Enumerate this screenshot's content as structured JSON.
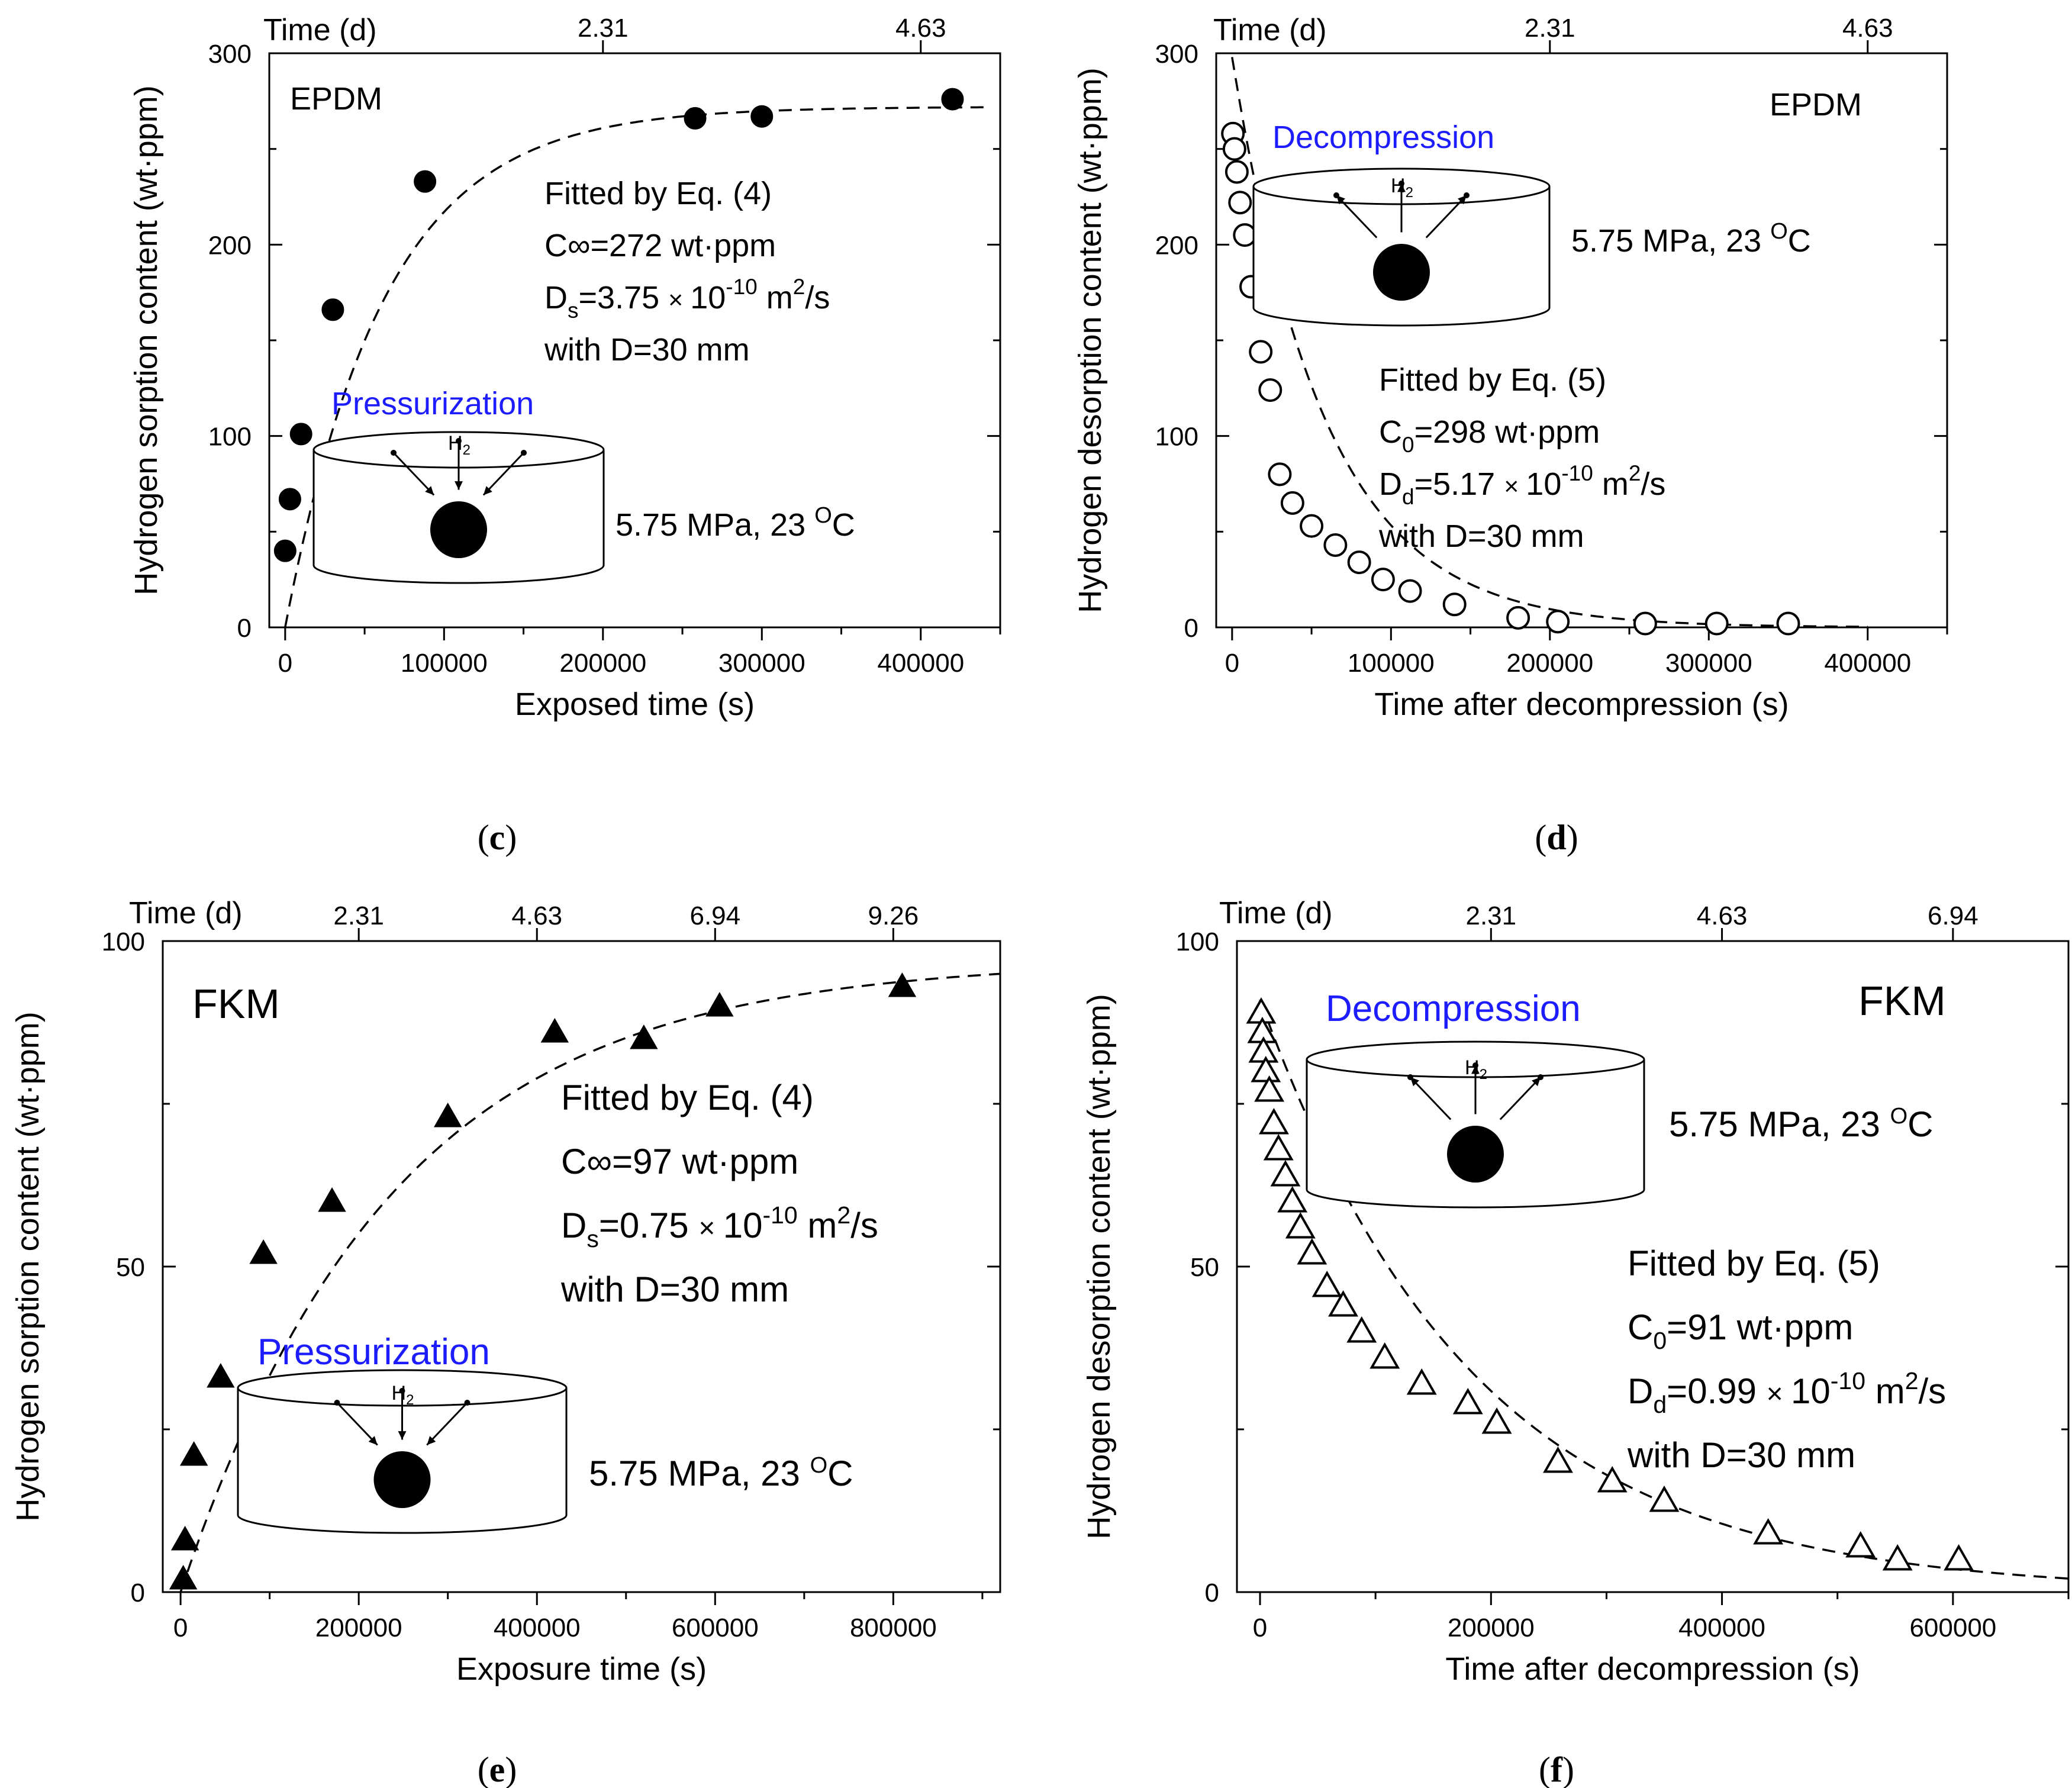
{
  "chart_data": [
    {
      "id": "c",
      "type": "scatter",
      "caption_letter": "c",
      "caption_open": "(",
      "caption_close": ")",
      "material": "EPDM",
      "xlabel": "Exposed time (s)",
      "ylabel": "Hydrogen sorption content (wt·ppm)",
      "top_axis_label": "Time (d)",
      "xlim": [
        -10000,
        450000
      ],
      "ylim": [
        0,
        300
      ],
      "x_ticks": [
        0,
        100000,
        200000,
        300000,
        400000
      ],
      "x_tick_labels": [
        "0",
        "100000",
        "200000",
        "300000",
        "400000"
      ],
      "y_ticks": [
        0,
        100,
        200,
        300
      ],
      "y_tick_labels": [
        "0",
        "100",
        "200",
        "300"
      ],
      "top_ticks": [
        {
          "x": 200000,
          "label": "2.31"
        },
        {
          "x": 400000,
          "label": "4.63"
        }
      ],
      "marker": "circle-filled",
      "fit": {
        "kind": "sorption",
        "c": 272,
        "x_end": 440000
      },
      "x": [
        0,
        3000,
        10000,
        30000,
        88000,
        258000,
        300000,
        420000
      ],
      "y": [
        40,
        67,
        101,
        166,
        233,
        266,
        267,
        276
      ],
      "annotation_lines": [
        "Fitted by Eq. (4)",
        "C∞=272 wt·ppm",
        "Ds=3.75 × 10^-10 m2/s",
        "with D=30 mm"
      ],
      "diagram_title": "Pressurization",
      "gas_label": "H2",
      "condition": "5.75 MPa, 23 OC"
    },
    {
      "id": "d",
      "type": "scatter",
      "caption_letter": "d",
      "caption_open": "(",
      "caption_close": ")",
      "material": "EPDM",
      "xlabel": "Time after decompression (s)",
      "ylabel": "Hydrogen desorption content (wt·ppm)",
      "top_axis_label": "Time (d)",
      "xlim": [
        -10000,
        450000
      ],
      "ylim": [
        0,
        300
      ],
      "x_ticks": [
        0,
        100000,
        200000,
        300000,
        400000
      ],
      "x_tick_labels": [
        "0",
        "100000",
        "200000",
        "300000",
        "400000"
      ],
      "y_ticks": [
        0,
        100,
        200,
        300
      ],
      "y_tick_labels": [
        "0",
        "100",
        "200",
        "300"
      ],
      "top_ticks": [
        {
          "x": 200000,
          "label": "2.31"
        },
        {
          "x": 400000,
          "label": "4.63"
        }
      ],
      "marker": "circle-open",
      "fit": {
        "kind": "desorption",
        "c": 298,
        "x_end": 400000
      },
      "x": [
        500,
        1500,
        3000,
        5000,
        8000,
        12000,
        18000,
        24000,
        30000,
        38000,
        50000,
        65000,
        80000,
        95000,
        112000,
        140000,
        180000,
        205000,
        260000,
        305000,
        350000
      ],
      "y": [
        258,
        250,
        238,
        222,
        205,
        178,
        144,
        124,
        80,
        65,
        53,
        43,
        34,
        25,
        19,
        12,
        5,
        3,
        2,
        2,
        2
      ],
      "annotation_lines": [
        "Fitted by Eq. (5)",
        "C0=298 wt·ppm",
        "Dd=5.17 × 10^-10 m2/s",
        "with D=30 mm"
      ],
      "diagram_title": "Decompression",
      "gas_label": "H2",
      "condition": "5.75 MPa, 23 OC"
    },
    {
      "id": "e",
      "type": "scatter",
      "caption_letter": "e",
      "caption_open": "(",
      "caption_close": ")",
      "material": "FKM",
      "xlabel": "Exposure time (s)",
      "ylabel": "Hydrogen sorption content (wt·ppm)",
      "top_axis_label": "Time (d)",
      "xlim": [
        -20000,
        920000
      ],
      "ylim": [
        0,
        100
      ],
      "x_ticks": [
        0,
        200000,
        400000,
        600000,
        800000
      ],
      "x_tick_labels": [
        "0",
        "200000",
        "400000",
        "600000",
        "800000"
      ],
      "y_ticks": [
        0,
        50,
        100
      ],
      "y_tick_labels": [
        "0",
        "50",
        "100"
      ],
      "top_ticks": [
        {
          "x": 200000,
          "label": "2.31"
        },
        {
          "x": 400000,
          "label": "4.63"
        },
        {
          "x": 600000,
          "label": "6.94"
        },
        {
          "x": 800000,
          "label": "9.26"
        }
      ],
      "marker": "triangle-filled",
      "fit": {
        "kind": "sorption",
        "c": 97,
        "x_end": 920000
      },
      "x": [
        3000,
        5000,
        15000,
        45000,
        93000,
        170000,
        300000,
        420000,
        520000,
        605000,
        810000
      ],
      "y": [
        2,
        8,
        21,
        33,
        52,
        60,
        73,
        86,
        85,
        90,
        93
      ],
      "annotation_lines": [
        "Fitted by Eq. (4)",
        "C∞=97 wt·ppm",
        "Ds=0.75 × 10^-10 m2/s",
        "with D=30 mm"
      ],
      "diagram_title": "Pressurization",
      "gas_label": "H2",
      "condition": "5.75 MPa, 23 OC"
    },
    {
      "id": "f",
      "type": "scatter",
      "caption_letter": "f",
      "caption_open": "(",
      "caption_close": ")",
      "material": "FKM",
      "xlabel": "Time after decompression (s)",
      "ylabel": "Hydrogen desorption content (wt·ppm)",
      "top_axis_label": "Time (d)",
      "xlim": [
        -20000,
        700000
      ],
      "ylim": [
        0,
        100
      ],
      "x_ticks": [
        0,
        200000,
        400000,
        600000
      ],
      "x_tick_labels": [
        "0",
        "200000",
        "400000",
        "600000"
      ],
      "y_ticks": [
        0,
        50,
        100
      ],
      "y_tick_labels": [
        "0",
        "50",
        "100"
      ],
      "top_ticks": [
        {
          "x": 200000,
          "label": "2.31"
        },
        {
          "x": 400000,
          "label": "4.63"
        },
        {
          "x": 600000,
          "label": "6.94"
        }
      ],
      "marker": "triangle-open",
      "fit": {
        "kind": "desorption",
        "c": 91,
        "x_end": 700000
      },
      "x": [
        1000,
        2000,
        3000,
        5000,
        8000,
        12000,
        16000,
        22000,
        28000,
        35000,
        45000,
        58000,
        72000,
        88000,
        108000,
        140000,
        180000,
        205000,
        258000,
        305000,
        350000,
        440000,
        520000,
        552000,
        605000
      ],
      "y": [
        89,
        86,
        83,
        80,
        77,
        72,
        68,
        64,
        60,
        56,
        52,
        47,
        44,
        40,
        36,
        32,
        29,
        26,
        20,
        17,
        14,
        9,
        7,
        5,
        5
      ],
      "annotation_lines": [
        "Fitted by Eq. (5)",
        "C0=91 wt·ppm",
        "Dd=0.99 × 10^-10 m2/s",
        "with D=30 mm"
      ],
      "diagram_title": "Decompression",
      "gas_label": "H2",
      "condition": "5.75 MPa, 23 OC"
    }
  ]
}
